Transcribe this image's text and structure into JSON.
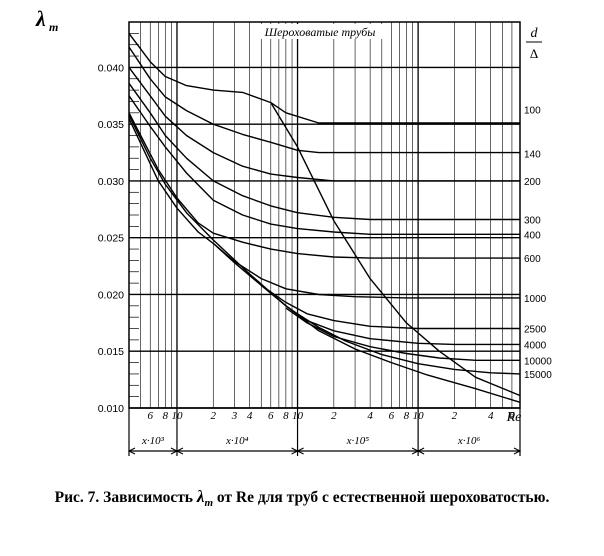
{
  "chart_data": {
    "type": "line",
    "title": "Шероховатые трубы",
    "ylabel_symbol": "λ",
    "ylabel_subscript": "т",
    "xlabel": "Re",
    "x_scale": "log",
    "xlim": [
      4000,
      7000000
    ],
    "ylim": [
      0.01,
      0.044
    ],
    "y_ticks": [
      "0.010",
      "0.015",
      "0.020",
      "0.025",
      "0.030",
      "0.035",
      "0.040"
    ],
    "right_axis_label_num": "d",
    "right_axis_label_den": "Δ",
    "x_decade_labels": [
      "x·10³",
      "x·10⁴",
      "x·10⁵",
      "x·10⁶"
    ],
    "x_tick_labels": [
      {
        "x": 6000,
        "label": "6"
      },
      {
        "x": 8000,
        "label": "8"
      },
      {
        "x": 10000,
        "label": "10"
      },
      {
        "x": 20000,
        "label": "2"
      },
      {
        "x": 30000,
        "label": "3"
      },
      {
        "x": 40000,
        "label": "4"
      },
      {
        "x": 60000,
        "label": "6"
      },
      {
        "x": 80000,
        "label": "8"
      },
      {
        "x": 100000,
        "label": "10"
      },
      {
        "x": 200000,
        "label": "2"
      },
      {
        "x": 400000,
        "label": "4"
      },
      {
        "x": 600000,
        "label": "6"
      },
      {
        "x": 800000,
        "label": "8"
      },
      {
        "x": 1000000,
        "label": "10"
      },
      {
        "x": 2000000,
        "label": "2"
      },
      {
        "x": 4000000,
        "label": "4"
      },
      {
        "x": 6000000,
        "label": "6"
      }
    ],
    "series": [
      {
        "name": "100",
        "label_y": 0.0363,
        "points": [
          [
            4000,
            0.043
          ],
          [
            6000,
            0.0405
          ],
          [
            8000,
            0.0392
          ],
          [
            12000,
            0.0384
          ],
          [
            20000,
            0.038
          ],
          [
            35000,
            0.0378
          ],
          [
            60000,
            0.0369
          ],
          [
            80000,
            0.036
          ],
          [
            150000,
            0.0351
          ],
          [
            7000000,
            0.0351
          ]
        ]
      },
      {
        "name": "140",
        "label_y": 0.0324,
        "points": [
          [
            4000,
            0.0418
          ],
          [
            6000,
            0.039
          ],
          [
            8000,
            0.0374
          ],
          [
            12000,
            0.0362
          ],
          [
            20000,
            0.035
          ],
          [
            35000,
            0.0341
          ],
          [
            60000,
            0.0334
          ],
          [
            100000,
            0.0327
          ],
          [
            150000,
            0.0325
          ],
          [
            7000000,
            0.0325
          ]
        ]
      },
      {
        "name": "200",
        "label_y": 0.03,
        "points": [
          [
            4000,
            0.04
          ],
          [
            6000,
            0.0375
          ],
          [
            8000,
            0.0357
          ],
          [
            12000,
            0.034
          ],
          [
            20000,
            0.0325
          ],
          [
            35000,
            0.0313
          ],
          [
            60000,
            0.0306
          ],
          [
            100000,
            0.0303
          ],
          [
            200000,
            0.03
          ],
          [
            7000000,
            0.03
          ]
        ]
      },
      {
        "name": "300",
        "label_y": 0.0266,
        "points": [
          [
            4000,
            0.0386
          ],
          [
            6000,
            0.036
          ],
          [
            8000,
            0.034
          ],
          [
            12000,
            0.032
          ],
          [
            20000,
            0.03
          ],
          [
            35000,
            0.0287
          ],
          [
            60000,
            0.0278
          ],
          [
            100000,
            0.0272
          ],
          [
            200000,
            0.0268
          ],
          [
            400000,
            0.0266
          ],
          [
            7000000,
            0.0266
          ]
        ]
      },
      {
        "name": "400",
        "label_y": 0.0253,
        "points": [
          [
            4000,
            0.0375
          ],
          [
            6000,
            0.0348
          ],
          [
            8000,
            0.033
          ],
          [
            12000,
            0.0307
          ],
          [
            20000,
            0.0283
          ],
          [
            35000,
            0.027
          ],
          [
            60000,
            0.0262
          ],
          [
            100000,
            0.0258
          ],
          [
            200000,
            0.0255
          ],
          [
            400000,
            0.0253
          ],
          [
            7000000,
            0.0253
          ]
        ]
      },
      {
        "name": "600",
        "label_y": 0.0232,
        "points": [
          [
            4000,
            0.036
          ],
          [
            5000,
            0.034
          ],
          [
            7000,
            0.031
          ],
          [
            10000,
            0.0285
          ],
          [
            15000,
            0.0263
          ],
          [
            20000,
            0.0254
          ],
          [
            35000,
            0.0246
          ],
          [
            60000,
            0.024
          ],
          [
            100000,
            0.0236
          ],
          [
            200000,
            0.0233
          ],
          [
            400000,
            0.0232
          ],
          [
            7000000,
            0.0232
          ]
        ]
      },
      {
        "name": "1000",
        "label_y": 0.0197,
        "points": [
          [
            4000,
            0.0355
          ],
          [
            7000,
            0.03
          ],
          [
            10000,
            0.0276
          ],
          [
            15000,
            0.0255
          ],
          [
            20000,
            0.0245
          ],
          [
            30000,
            0.0229
          ],
          [
            50000,
            0.0214
          ],
          [
            80000,
            0.0205
          ],
          [
            150000,
            0.02
          ],
          [
            300000,
            0.0198
          ],
          [
            800000,
            0.0197
          ],
          [
            7000000,
            0.0197
          ]
        ]
      },
      {
        "name": "2500",
        "label_y": 0.017,
        "points": [
          [
            20000,
            0.0245
          ],
          [
            30000,
            0.0228
          ],
          [
            50000,
            0.0208
          ],
          [
            80000,
            0.0193
          ],
          [
            120000,
            0.0183
          ],
          [
            200000,
            0.0177
          ],
          [
            400000,
            0.0172
          ],
          [
            1000000,
            0.017
          ],
          [
            7000000,
            0.017
          ]
        ]
      },
      {
        "name": "4000",
        "label_y": 0.0156,
        "points": [
          [
            50000,
            0.0208
          ],
          [
            80000,
            0.019
          ],
          [
            120000,
            0.0177
          ],
          [
            200000,
            0.0168
          ],
          [
            400000,
            0.0161
          ],
          [
            1000000,
            0.0157
          ],
          [
            2000000,
            0.0156
          ],
          [
            7000000,
            0.0156
          ]
        ]
      },
      {
        "name": "10000",
        "label_y": 0.0142,
        "points": [
          [
            80000,
            0.0188
          ],
          [
            120000,
            0.0175
          ],
          [
            200000,
            0.0163
          ],
          [
            400000,
            0.0154
          ],
          [
            800000,
            0.0148
          ],
          [
            1500000,
            0.0144
          ],
          [
            3000000,
            0.0142
          ],
          [
            7000000,
            0.0142
          ]
        ]
      },
      {
        "name": "15000",
        "label_y": 0.013,
        "points": [
          [
            100000,
            0.0183
          ],
          [
            150000,
            0.0171
          ],
          [
            250000,
            0.0159
          ],
          [
            500000,
            0.0147
          ],
          [
            1000000,
            0.0139
          ],
          [
            2000000,
            0.0134
          ],
          [
            4000000,
            0.0131
          ],
          [
            7000000,
            0.013
          ]
        ]
      },
      {
        "name": "",
        "points": [
          [
            4000,
            0.0358
          ],
          [
            6000,
            0.032
          ],
          [
            8000,
            0.0297
          ],
          [
            12000,
            0.0272
          ],
          [
            20000,
            0.0248
          ],
          [
            40000,
            0.0218
          ],
          [
            80000,
            0.019
          ],
          [
            150000,
            0.0168
          ],
          [
            300000,
            0.0152
          ],
          [
            600000,
            0.014
          ],
          [
            1200000,
            0.0129
          ],
          [
            3000000,
            0.0117
          ],
          [
            7000000,
            0.0105
          ]
        ]
      },
      {
        "name": "",
        "points": [
          [
            60000,
            0.0369
          ],
          [
            100000,
            0.033
          ],
          [
            200000,
            0.0265
          ],
          [
            400000,
            0.0214
          ],
          [
            800000,
            0.0175
          ],
          [
            1500000,
            0.015
          ],
          [
            3000000,
            0.0127
          ],
          [
            7000000,
            0.0111
          ]
        ]
      }
    ]
  }
}
